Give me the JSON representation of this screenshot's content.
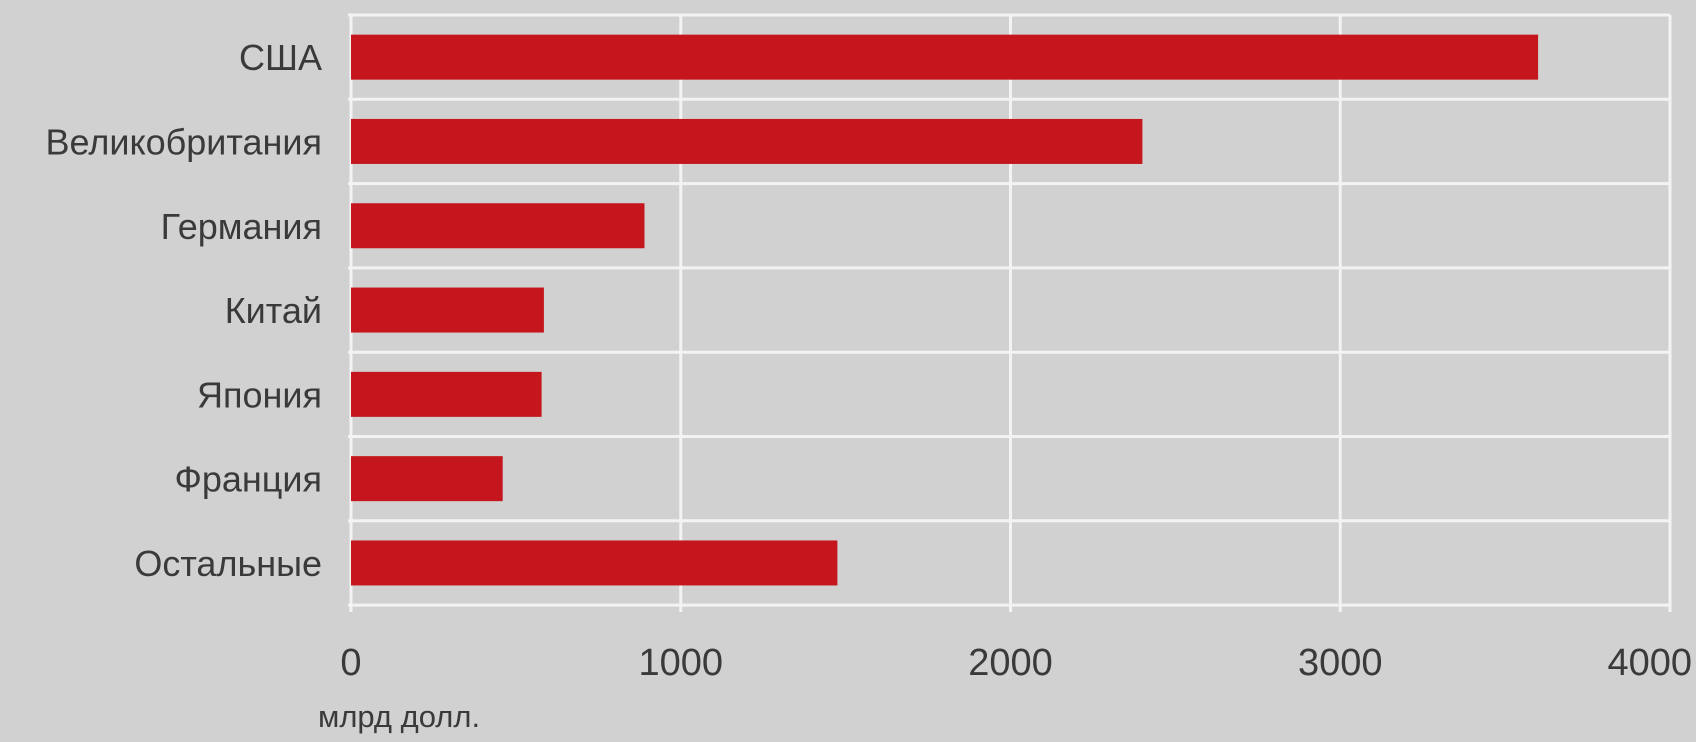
{
  "chart_data": {
    "type": "bar",
    "orientation": "horizontal",
    "categories": [
      "США",
      "Великобритания",
      "Германия",
      "Китай",
      "Япония",
      "Франция",
      "Остальные"
    ],
    "values": [
      3600,
      2400,
      890,
      585,
      578,
      460,
      1475
    ],
    "xlim": [
      0,
      4000
    ],
    "xticks": [
      0,
      1000,
      2000,
      3000,
      4000
    ],
    "xtick_labels": [
      "0",
      "1000",
      "2000",
      "3000",
      "4000"
    ],
    "unit_label": "млрд долл.",
    "grid": true,
    "bar_color": "#c4161c",
    "background_color": "#d1d1d1",
    "grid_color": "#f3f3f3"
  }
}
